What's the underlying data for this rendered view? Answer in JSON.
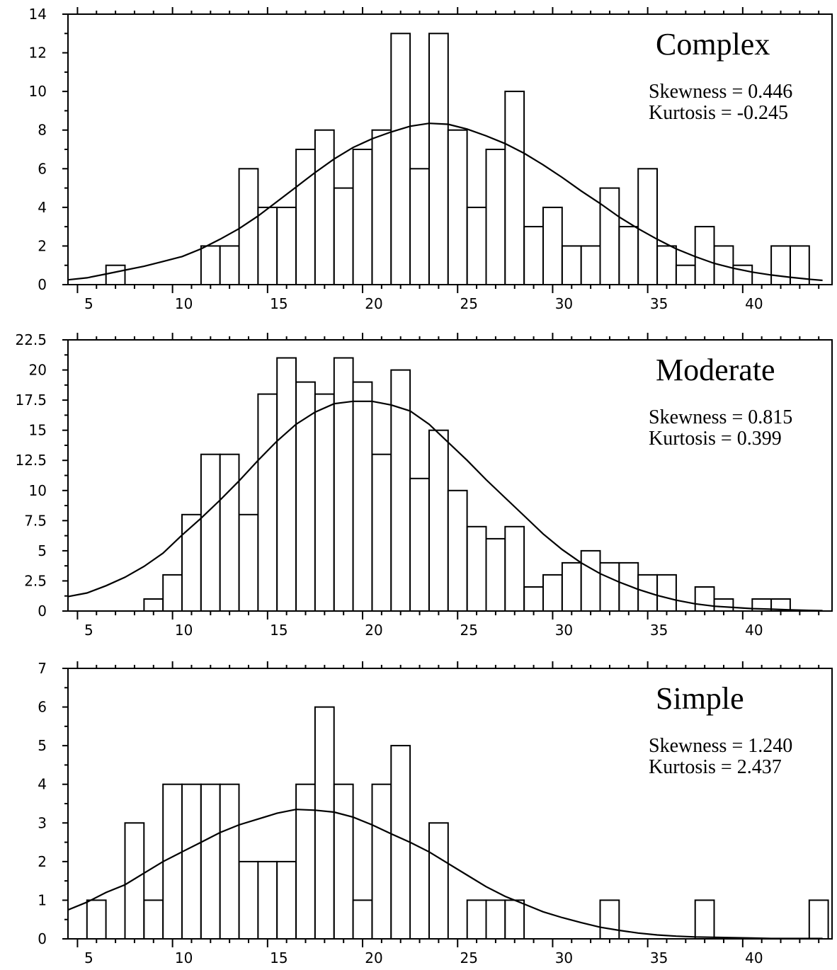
{
  "chart_data": [
    {
      "type": "bar",
      "title": "Complex",
      "annotations": [
        "Skewness = 0.446",
        "Kurtosis = -0.245"
      ],
      "xlim": [
        4.5,
        44.7
      ],
      "ylim": [
        0,
        14
      ],
      "xticks": [
        5,
        10,
        15,
        20,
        25,
        30,
        35,
        40
      ],
      "xtick_labels": [
        "5",
        "10",
        "15",
        "20",
        "25",
        "30",
        "35",
        "40"
      ],
      "yticks": [
        0,
        2,
        4,
        6,
        8,
        10,
        12,
        14
      ],
      "ytick_labels": [
        "0",
        "2",
        "4",
        "6",
        "8",
        "10",
        "12",
        "14"
      ],
      "bin_width": 1,
      "bins": [
        [
          6.5,
          1
        ],
        [
          11.5,
          2
        ],
        [
          12.5,
          2
        ],
        [
          13.5,
          6
        ],
        [
          14.5,
          4
        ],
        [
          15.5,
          4
        ],
        [
          16.5,
          7
        ],
        [
          17.5,
          8
        ],
        [
          18.5,
          5
        ],
        [
          19.5,
          7
        ],
        [
          20.5,
          8
        ],
        [
          21.5,
          13
        ],
        [
          22.5,
          6
        ],
        [
          23.5,
          13
        ],
        [
          24.5,
          8
        ],
        [
          25.5,
          4
        ],
        [
          26.5,
          7
        ],
        [
          27.5,
          10
        ],
        [
          28.5,
          3
        ],
        [
          29.5,
          4
        ],
        [
          30.5,
          2
        ],
        [
          31.5,
          2
        ],
        [
          32.5,
          5
        ],
        [
          33.5,
          3
        ],
        [
          34.5,
          6
        ],
        [
          35.5,
          2
        ],
        [
          36.5,
          1
        ],
        [
          37.5,
          3
        ],
        [
          38.5,
          2
        ],
        [
          39.5,
          1
        ],
        [
          41.5,
          2
        ],
        [
          42.5,
          2
        ]
      ],
      "curve": [
        [
          4.5,
          0.25
        ],
        [
          5.5,
          0.35
        ],
        [
          6.5,
          0.55
        ],
        [
          7.5,
          0.75
        ],
        [
          8.5,
          0.95
        ],
        [
          9.5,
          1.2
        ],
        [
          10.5,
          1.45
        ],
        [
          11.5,
          1.85
        ],
        [
          12.5,
          2.35
        ],
        [
          13.5,
          2.9
        ],
        [
          14.5,
          3.55
        ],
        [
          15.5,
          4.3
        ],
        [
          16.5,
          5.05
        ],
        [
          17.5,
          5.8
        ],
        [
          18.5,
          6.5
        ],
        [
          19.5,
          7.1
        ],
        [
          20.5,
          7.55
        ],
        [
          21.5,
          7.9
        ],
        [
          22.5,
          8.2
        ],
        [
          23.5,
          8.35
        ],
        [
          24.5,
          8.3
        ],
        [
          25.5,
          8.05
        ],
        [
          26.5,
          7.7
        ],
        [
          27.5,
          7.3
        ],
        [
          28.5,
          6.8
        ],
        [
          29.5,
          6.2
        ],
        [
          30.5,
          5.55
        ],
        [
          31.5,
          4.85
        ],
        [
          32.5,
          4.2
        ],
        [
          33.5,
          3.5
        ],
        [
          34.5,
          2.9
        ],
        [
          35.5,
          2.35
        ],
        [
          36.5,
          1.85
        ],
        [
          37.5,
          1.45
        ],
        [
          38.5,
          1.1
        ],
        [
          39.5,
          0.85
        ],
        [
          40.5,
          0.65
        ],
        [
          41.5,
          0.5
        ],
        [
          42.5,
          0.38
        ],
        [
          43.5,
          0.28
        ],
        [
          44.2,
          0.22
        ]
      ]
    },
    {
      "type": "bar",
      "title": "Moderate",
      "annotations": [
        "Skewness = 0.815",
        "Kurtosis = 0.399"
      ],
      "xlim": [
        4.5,
        44.7
      ],
      "ylim": [
        0,
        22.5
      ],
      "xticks": [
        5,
        10,
        15,
        20,
        25,
        30,
        35,
        40
      ],
      "xtick_labels": [
        "5",
        "10",
        "15",
        "20",
        "25",
        "30",
        "35",
        "40"
      ],
      "yticks": [
        0,
        2.5,
        5,
        7.5,
        10,
        12.5,
        15,
        17.5,
        20,
        22.5
      ],
      "ytick_labels": [
        "0",
        "2.5",
        "5",
        "7.5",
        "10",
        "12.5",
        "15",
        "17.5",
        "20",
        "22.5"
      ],
      "bin_width": 1,
      "bins": [
        [
          8.5,
          1
        ],
        [
          9.5,
          3
        ],
        [
          10.5,
          8
        ],
        [
          11.5,
          13
        ],
        [
          12.5,
          13
        ],
        [
          13.5,
          8
        ],
        [
          14.5,
          18
        ],
        [
          15.5,
          21
        ],
        [
          16.5,
          19
        ],
        [
          17.5,
          18
        ],
        [
          18.5,
          21
        ],
        [
          19.5,
          19
        ],
        [
          20.5,
          13
        ],
        [
          21.5,
          20
        ],
        [
          22.5,
          11
        ],
        [
          23.5,
          15
        ],
        [
          24.5,
          10
        ],
        [
          25.5,
          7
        ],
        [
          26.5,
          6
        ],
        [
          27.5,
          7
        ],
        [
          28.5,
          2
        ],
        [
          29.5,
          3
        ],
        [
          30.5,
          4
        ],
        [
          31.5,
          5
        ],
        [
          32.5,
          4
        ],
        [
          33.5,
          4
        ],
        [
          34.5,
          3
        ],
        [
          35.5,
          3
        ],
        [
          37.5,
          2
        ],
        [
          38.5,
          1
        ],
        [
          40.5,
          1
        ],
        [
          41.5,
          1
        ]
      ],
      "curve": [
        [
          4.5,
          1.2
        ],
        [
          5.5,
          1.5
        ],
        [
          6.5,
          2.1
        ],
        [
          7.5,
          2.8
        ],
        [
          8.5,
          3.7
        ],
        [
          9.5,
          4.8
        ],
        [
          10.5,
          6.3
        ],
        [
          11.5,
          7.7
        ],
        [
          12.5,
          9.2
        ],
        [
          13.5,
          10.8
        ],
        [
          14.5,
          12.5
        ],
        [
          15.5,
          14.1
        ],
        [
          16.5,
          15.5
        ],
        [
          17.5,
          16.5
        ],
        [
          18.5,
          17.2
        ],
        [
          19.5,
          17.4
        ],
        [
          20.5,
          17.4
        ],
        [
          21.5,
          17.1
        ],
        [
          22.5,
          16.6
        ],
        [
          23.5,
          15.5
        ],
        [
          24.5,
          14
        ],
        [
          25.5,
          12.5
        ],
        [
          26.5,
          10.9
        ],
        [
          27.5,
          9.4
        ],
        [
          28.5,
          7.9
        ],
        [
          29.5,
          6.4
        ],
        [
          30.5,
          5.1
        ],
        [
          31.5,
          4
        ],
        [
          32.5,
          3.1
        ],
        [
          33.5,
          2.4
        ],
        [
          34.5,
          1.8
        ],
        [
          35.5,
          1.3
        ],
        [
          36.5,
          0.9
        ],
        [
          37.5,
          0.6
        ],
        [
          38.5,
          0.4
        ],
        [
          39.5,
          0.3
        ],
        [
          40.5,
          0.2
        ],
        [
          41.5,
          0.15
        ],
        [
          42.5,
          0.1
        ],
        [
          43.5,
          0.05
        ],
        [
          44.2,
          0.03
        ]
      ]
    },
    {
      "type": "bar",
      "title": "Simple",
      "annotations": [
        "Skewness = 1.240",
        "Kurtosis = 2.437"
      ],
      "xlim": [
        4.5,
        44.7
      ],
      "ylim": [
        0,
        7
      ],
      "xticks": [
        5,
        10,
        15,
        20,
        25,
        30,
        35,
        40
      ],
      "xtick_labels": [
        "5",
        "10",
        "15",
        "20",
        "25",
        "30",
        "35",
        "40"
      ],
      "yticks": [
        0,
        1,
        2,
        3,
        4,
        5,
        6,
        7
      ],
      "ytick_labels": [
        "0",
        "1",
        "2",
        "3",
        "4",
        "5",
        "6",
        "7"
      ],
      "bin_width": 1,
      "bins": [
        [
          5.5,
          1
        ],
        [
          7.5,
          3
        ],
        [
          8.5,
          1
        ],
        [
          9.5,
          4
        ],
        [
          10.5,
          4
        ],
        [
          11.5,
          4
        ],
        [
          12.5,
          4
        ],
        [
          13.5,
          2
        ],
        [
          14.5,
          2
        ],
        [
          15.5,
          2
        ],
        [
          16.5,
          4
        ],
        [
          17.5,
          6
        ],
        [
          18.5,
          4
        ],
        [
          19.5,
          1
        ],
        [
          20.5,
          4
        ],
        [
          21.5,
          5
        ],
        [
          23.5,
          3
        ],
        [
          25.5,
          1
        ],
        [
          26.5,
          1
        ],
        [
          27.5,
          1
        ],
        [
          32.5,
          1
        ],
        [
          37.5,
          1
        ],
        [
          43.5,
          1
        ]
      ],
      "curve": [
        [
          4.5,
          0.75
        ],
        [
          5.5,
          0.95
        ],
        [
          6.5,
          1.2
        ],
        [
          7.5,
          1.4
        ],
        [
          8.5,
          1.7
        ],
        [
          9.5,
          2
        ],
        [
          10.5,
          2.25
        ],
        [
          11.5,
          2.5
        ],
        [
          12.5,
          2.75
        ],
        [
          13.5,
          2.95
        ],
        [
          14.5,
          3.1
        ],
        [
          15.5,
          3.25
        ],
        [
          16.5,
          3.35
        ],
        [
          17.5,
          3.33
        ],
        [
          18.5,
          3.28
        ],
        [
          19.5,
          3.15
        ],
        [
          20.5,
          2.95
        ],
        [
          21.5,
          2.72
        ],
        [
          22.5,
          2.5
        ],
        [
          23.5,
          2.25
        ],
        [
          24.5,
          1.95
        ],
        [
          25.5,
          1.65
        ],
        [
          26.5,
          1.35
        ],
        [
          27.5,
          1.1
        ],
        [
          28.5,
          0.9
        ],
        [
          29.5,
          0.7
        ],
        [
          30.5,
          0.55
        ],
        [
          31.5,
          0.42
        ],
        [
          32.5,
          0.3
        ],
        [
          33.5,
          0.22
        ],
        [
          34.5,
          0.15
        ],
        [
          35.5,
          0.1
        ],
        [
          36.5,
          0.07
        ],
        [
          37.5,
          0.05
        ],
        [
          38.5,
          0.04
        ],
        [
          39.5,
          0.03
        ],
        [
          40.5,
          0.02
        ],
        [
          41.5,
          0.01
        ],
        [
          42.5,
          0.01
        ],
        [
          44.2,
          0.01
        ]
      ]
    }
  ]
}
